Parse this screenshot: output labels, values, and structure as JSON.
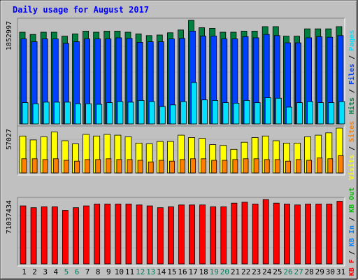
{
  "title": "Daily usage for August 2017",
  "colors": {
    "background": "#C0C0C0",
    "title_text": "#0000FF",
    "hits": "#008040",
    "files": "#0040FF",
    "pages": "#00E0FF",
    "visits": "#FFFF00",
    "sites": "#FF8000",
    "kbf": "#FF0000",
    "kbin": "#0080FF",
    "kbout": "#00C000",
    "weekday_label": "#000000",
    "weekend_label": "#00805C"
  },
  "chart_data": [
    {
      "type": "bar",
      "panel": "pages-files-hits",
      "categories": [
        "1",
        "2",
        "3",
        "4",
        "5",
        "6",
        "7",
        "8",
        "9",
        "10",
        "11",
        "12",
        "13",
        "14",
        "15",
        "16",
        "17",
        "18",
        "19",
        "20",
        "21",
        "22",
        "23",
        "24",
        "25",
        "26",
        "27",
        "28",
        "29",
        "30",
        "31"
      ],
      "weekend_days": [
        "5",
        "6",
        "12",
        "13",
        "19",
        "20",
        "26",
        "27"
      ],
      "scale_label": "1852997",
      "ylim": [
        0,
        1852997
      ],
      "legend": [
        {
          "text": "Hits",
          "color": "#008040"
        },
        {
          "text": "/",
          "color": "#000000"
        },
        {
          "text": "Files",
          "color": "#0040FF"
        },
        {
          "text": "/",
          "color": "#000000"
        },
        {
          "text": "Pages",
          "color": "#00E0FF"
        }
      ],
      "series": [
        {
          "name": "Hits",
          "values": [
            1640000,
            1600000,
            1640000,
            1640000,
            1570000,
            1610000,
            1660000,
            1640000,
            1660000,
            1660000,
            1640000,
            1610000,
            1580000,
            1590000,
            1630000,
            1680000,
            1852997,
            1720000,
            1710000,
            1640000,
            1640000,
            1660000,
            1660000,
            1740000,
            1740000,
            1570000,
            1570000,
            1700000,
            1700000,
            1700000,
            1740000
          ]
        },
        {
          "name": "Files",
          "values": [
            1520000,
            1470000,
            1520000,
            1520000,
            1440000,
            1470000,
            1520000,
            1520000,
            1520000,
            1540000,
            1530000,
            1460000,
            1470000,
            1470000,
            1520000,
            1530000,
            1660000,
            1570000,
            1570000,
            1520000,
            1520000,
            1560000,
            1540000,
            1600000,
            1580000,
            1450000,
            1450000,
            1540000,
            1560000,
            1550000,
            1580000
          ]
        },
        {
          "name": "Pages",
          "values": [
            380000,
            360000,
            390000,
            390000,
            390000,
            360000,
            360000,
            350000,
            380000,
            400000,
            390000,
            420000,
            400000,
            310000,
            340000,
            400000,
            740000,
            430000,
            420000,
            380000,
            370000,
            420000,
            380000,
            470000,
            460000,
            300000,
            380000,
            400000,
            380000,
            380000,
            400000
          ]
        }
      ]
    },
    {
      "type": "bar",
      "panel": "visits-sites",
      "categories": [
        "1",
        "2",
        "3",
        "4",
        "5",
        "6",
        "7",
        "8",
        "9",
        "10",
        "11",
        "12",
        "13",
        "14",
        "15",
        "16",
        "17",
        "18",
        "19",
        "20",
        "21",
        "22",
        "23",
        "24",
        "25",
        "26",
        "27",
        "28",
        "29",
        "30",
        "31"
      ],
      "scale_label": "57027",
      "ylim": [
        0,
        57027
      ],
      "legend": [
        {
          "text": "Visits",
          "color": "#FFFF00"
        },
        {
          "text": "/",
          "color": "#000000"
        },
        {
          "text": "Sites",
          "color": "#FF8000"
        }
      ],
      "series": [
        {
          "name": "Visits",
          "values": [
            47000,
            42000,
            46000,
            52000,
            41000,
            37000,
            49000,
            47000,
            49000,
            48000,
            46000,
            38000,
            37000,
            40000,
            40000,
            48000,
            45000,
            44000,
            36000,
            35000,
            30000,
            39000,
            45000,
            47000,
            41000,
            38000,
            38000,
            46000,
            48000,
            51000,
            57027
          ]
        },
        {
          "name": "Sites",
          "values": [
            18000,
            18000,
            17000,
            18000,
            16000,
            15000,
            17000,
            17000,
            18000,
            17000,
            17000,
            16000,
            14000,
            16000,
            15000,
            17000,
            18000,
            18000,
            16000,
            16000,
            17000,
            18000,
            18000,
            17000,
            17000,
            15000,
            17000,
            16000,
            19000,
            18000,
            22000
          ]
        }
      ]
    },
    {
      "type": "bar",
      "panel": "kbf-kbin-kbout",
      "categories": [
        "1",
        "2",
        "3",
        "4",
        "5",
        "6",
        "7",
        "8",
        "9",
        "10",
        "11",
        "12",
        "13",
        "14",
        "15",
        "16",
        "17",
        "18",
        "19",
        "20",
        "21",
        "22",
        "23",
        "24",
        "25",
        "26",
        "27",
        "28",
        "29",
        "30",
        "31"
      ],
      "scale_label": "71037434",
      "ylim": [
        0,
        71037434
      ],
      "legend": [
        {
          "text": "KB F",
          "color": "#FF0000"
        },
        {
          "text": "/",
          "color": "#000000"
        },
        {
          "text": "KB In",
          "color": "#0080FF"
        },
        {
          "text": "/",
          "color": "#000000"
        },
        {
          "text": "KB Out",
          "color": "#00C000"
        }
      ],
      "series": [
        {
          "name": "KB F",
          "values": [
            64000000,
            62000000,
            63000000,
            63000000,
            59000000,
            62000000,
            64000000,
            66000000,
            66000000,
            66000000,
            66000000,
            65000000,
            64000000,
            62000000,
            63000000,
            65000000,
            65000000,
            65000000,
            63000000,
            63000000,
            67000000,
            68000000,
            66000000,
            71037434,
            67000000,
            66000000,
            65000000,
            66000000,
            66000000,
            66000000,
            69000000
          ]
        }
      ]
    }
  ]
}
